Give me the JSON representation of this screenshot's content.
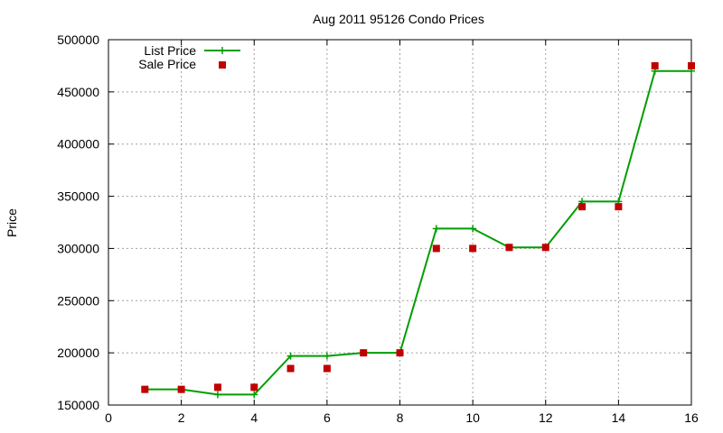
{
  "chart_data": {
    "type": "line",
    "title": "Aug 2011 95126 Condo Prices",
    "xlabel": "",
    "ylabel": "Price",
    "xlim": [
      0,
      16
    ],
    "ylim": [
      150000,
      500000
    ],
    "x_ticks": [
      0,
      2,
      4,
      6,
      8,
      10,
      12,
      14,
      16
    ],
    "y_ticks": [
      150000,
      200000,
      250000,
      300000,
      350000,
      400000,
      450000,
      500000
    ],
    "x_tick_labels": [
      "0",
      "2",
      "4",
      "6",
      "8",
      "10",
      "12",
      "14",
      "16"
    ],
    "y_tick_labels": [
      "150000",
      "200000",
      "250000",
      "300000",
      "350000",
      "400000",
      "450000",
      "500000"
    ],
    "grid": true,
    "legend_position": "top-left",
    "series": [
      {
        "name": "List Price",
        "kind": "line",
        "marker": "plus",
        "color": "#009e00",
        "x": [
          1,
          2,
          3,
          4,
          5,
          6,
          7,
          8,
          9,
          10,
          11,
          12,
          13,
          14,
          15,
          16
        ],
        "y": [
          165000,
          165000,
          160000,
          160000,
          197000,
          197000,
          200000,
          200000,
          319000,
          319000,
          301000,
          301000,
          345000,
          345000,
          470000,
          470000
        ]
      },
      {
        "name": "Sale Price",
        "kind": "scatter",
        "marker": "square",
        "color": "#c00000",
        "x": [
          1,
          2,
          3,
          4,
          5,
          6,
          7,
          8,
          9,
          10,
          11,
          12,
          13,
          14,
          15,
          16
        ],
        "y": [
          165000,
          165000,
          167000,
          167000,
          185000,
          185000,
          200000,
          200000,
          300000,
          300000,
          301000,
          301000,
          340000,
          340000,
          475000,
          475000
        ]
      }
    ]
  }
}
